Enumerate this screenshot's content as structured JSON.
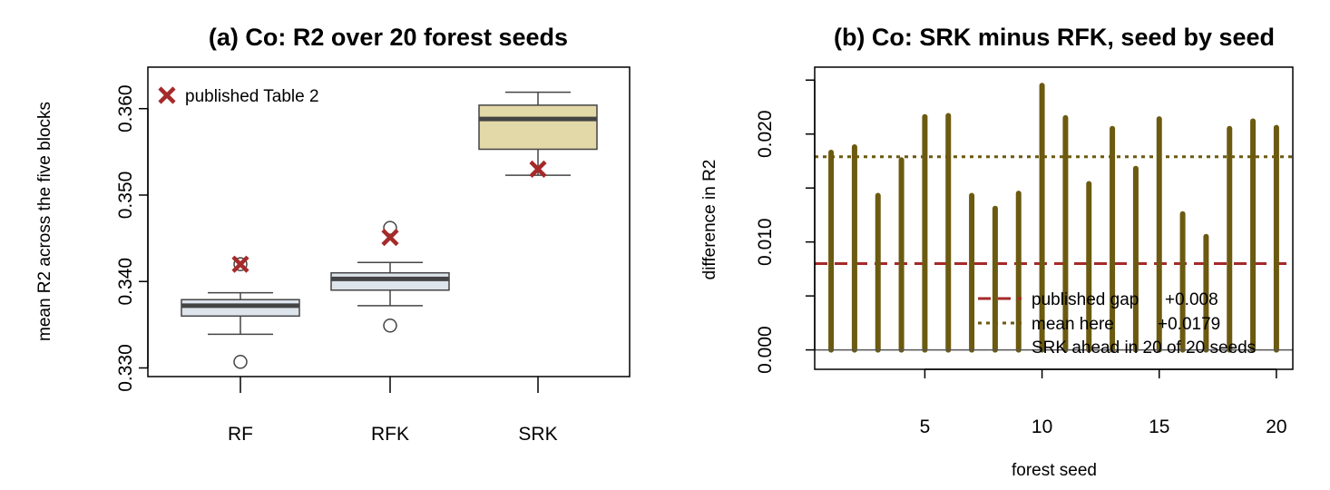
{
  "chart_data": [
    {
      "type": "box",
      "title": "(a) Co: R2 over 20 forest seeds",
      "xlabel": "",
      "ylabel": "mean R2 across the five blocks",
      "ylim": [
        0.329,
        0.3648
      ],
      "yticks": [
        0.33,
        0.34,
        0.35,
        0.36
      ],
      "ytick_labels": [
        "0.330",
        "0.340",
        "0.350",
        "0.360"
      ],
      "grid": false,
      "legend": {
        "position": "top-left",
        "entries": [
          "published Table 2"
        ]
      },
      "marker_color": "#a52a2a",
      "boxes": [
        {
          "category": "RF",
          "whisker_low": 0.3339,
          "q1": 0.336,
          "median": 0.3372,
          "q3": 0.3379,
          "whisker_high": 0.3387,
          "outliers": [
            0.3307,
            0.342
          ],
          "published": 0.342,
          "fill": "#dde4ec"
        },
        {
          "category": "RFK",
          "whisker_low": 0.3372,
          "q1": 0.339,
          "median": 0.3403,
          "q3": 0.341,
          "whisker_high": 0.3422,
          "outliers": [
            0.3349,
            0.3462
          ],
          "published": 0.3451,
          "fill": "#dde4ec"
        },
        {
          "category": "SRK",
          "whisker_low": 0.3523,
          "q1": 0.3553,
          "median": 0.3588,
          "q3": 0.3604,
          "whisker_high": 0.3619,
          "outliers": [],
          "published": 0.353,
          "fill": "#e3d8a8"
        }
      ]
    },
    {
      "type": "bar",
      "title": "(b) Co: SRK minus RFK, seed by seed",
      "xlabel": "forest seed",
      "ylabel": "difference in R2",
      "xlim": [
        0.3,
        20.7
      ],
      "ylim": [
        -0.0018,
        0.0262
      ],
      "xticks": [
        5,
        10,
        15,
        20
      ],
      "xtick_labels": [
        "5",
        "10",
        "15",
        "20"
      ],
      "yticks": [
        0.0,
        0.01,
        0.02
      ],
      "ytick_labels": [
        "0.000",
        "0.010",
        "0.020"
      ],
      "grid": false,
      "bar_color": "#6b5a10",
      "x": [
        1,
        2,
        3,
        4,
        5,
        6,
        7,
        8,
        9,
        10,
        11,
        12,
        13,
        14,
        15,
        16,
        17,
        18,
        19,
        20
      ],
      "values": [
        0.0183,
        0.0188,
        0.0143,
        0.0176,
        0.0216,
        0.0217,
        0.0143,
        0.0131,
        0.0145,
        0.0245,
        0.0215,
        0.0154,
        0.0205,
        0.0168,
        0.0214,
        0.0126,
        0.0105,
        0.0205,
        0.0212,
        0.0206
      ],
      "reference_lines": [
        {
          "label": "published gap",
          "value_text": "+0.008",
          "value": 0.008,
          "color": "#a52a2a",
          "style": "dashed"
        },
        {
          "label": "mean here",
          "value_text": "+0.0179",
          "value": 0.0179,
          "color": "#6b5a10",
          "style": "dotted"
        }
      ],
      "legend": {
        "position": "bottom-right",
        "note": "SRK ahead in 20 of 20 seeds"
      }
    }
  ]
}
